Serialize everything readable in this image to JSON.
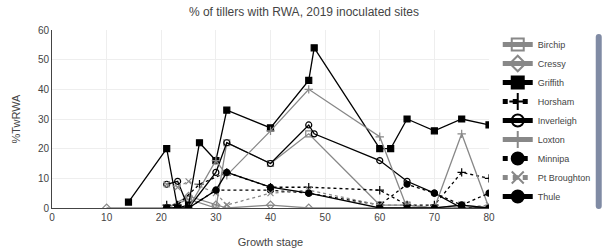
{
  "chart_data": {
    "type": "line",
    "title": "% of tillers with RWA, 2019 inoculated sites",
    "x_label": "Growth stage",
    "y_label": "%TwRWA",
    "xlim": [
      0,
      80
    ],
    "ylim": [
      0,
      60
    ],
    "xticks": [
      0,
      10,
      20,
      30,
      40,
      50,
      60,
      70,
      80
    ],
    "yticks": [
      0,
      10,
      20,
      30,
      40,
      50,
      60
    ],
    "grid": true,
    "legend": "right",
    "series": [
      {
        "name": "Birchip",
        "color": "#888888",
        "marker": "square-open",
        "line_style": "solid",
        "x": [
          21,
          25,
          30,
          32,
          40,
          47,
          60,
          65,
          70,
          75,
          80
        ],
        "values": [
          0,
          3,
          0,
          22,
          15,
          25,
          1,
          1,
          0,
          1,
          0
        ]
      },
      {
        "name": "Cressy",
        "color": "#888888",
        "marker": "diamond-open",
        "line_style": "solid",
        "x": [
          10,
          21,
          25,
          30,
          32,
          40,
          47,
          60,
          65,
          70,
          75,
          80
        ],
        "values": [
          0,
          0,
          4,
          1,
          0,
          1,
          0,
          0,
          0,
          0,
          0,
          0
        ]
      },
      {
        "name": "Griffith",
        "color": "#000000",
        "marker": "square",
        "line_style": "solid",
        "x": [
          14,
          21,
          23,
          25,
          27,
          30,
          32,
          40,
          47,
          48,
          60,
          62,
          65,
          70,
          75,
          80
        ],
        "values": [
          2,
          20,
          0,
          1,
          22,
          16,
          33,
          27,
          43,
          54,
          20,
          20,
          30,
          26,
          30,
          28
        ]
      },
      {
        "name": "Horsham",
        "color": "#000000",
        "marker": "cross",
        "line_style": "dotted",
        "x": [
          21,
          23,
          27,
          32,
          40,
          47,
          60,
          65,
          70,
          75,
          80
        ],
        "values": [
          1,
          1,
          8,
          12,
          7,
          7,
          6,
          1,
          1,
          12,
          10
        ]
      },
      {
        "name": "Inverleigh",
        "color": "#000000",
        "marker": "circle-open",
        "line_style": "solid",
        "x": [
          21,
          23,
          25,
          30,
          32,
          40,
          47,
          48,
          60,
          65,
          70,
          75,
          80
        ],
        "values": [
          8,
          9,
          0,
          12,
          22,
          15,
          28,
          25,
          16,
          9,
          5,
          0,
          0
        ]
      },
      {
        "name": "Loxton",
        "color": "#888888",
        "marker": "cross",
        "line_style": "solid",
        "x": [
          21,
          25,
          30,
          32,
          40,
          47,
          60,
          65,
          70,
          75,
          80
        ],
        "values": [
          0,
          0,
          16,
          11,
          26,
          40,
          24,
          0,
          0,
          25,
          0
        ]
      },
      {
        "name": "Minnipa",
        "color": "#000000",
        "marker": "circle",
        "line_style": "dotted",
        "x": [
          21,
          25,
          30,
          40,
          47,
          60,
          65,
          70,
          75,
          80
        ],
        "values": [
          0,
          0,
          6,
          6,
          5,
          1,
          8,
          5,
          1,
          5
        ]
      },
      {
        "name": "Pt Broughton",
        "color": "#888888",
        "marker": "x",
        "line_style": "dotted",
        "x": [
          21,
          23,
          25,
          30,
          32,
          40,
          47,
          60,
          65,
          70,
          75,
          80
        ],
        "values": [
          8,
          7,
          9,
          5,
          1,
          5,
          6,
          1,
          1,
          0,
          0,
          1
        ]
      },
      {
        "name": "Thule",
        "color": "#000000",
        "marker": "circle",
        "line_style": "solid",
        "x": [
          21,
          23,
          25,
          30,
          32,
          40,
          47,
          60,
          65,
          70,
          75,
          80
        ],
        "values": [
          0,
          0,
          0,
          6,
          12,
          7,
          5,
          0,
          0,
          0,
          1,
          0
        ]
      }
    ]
  }
}
